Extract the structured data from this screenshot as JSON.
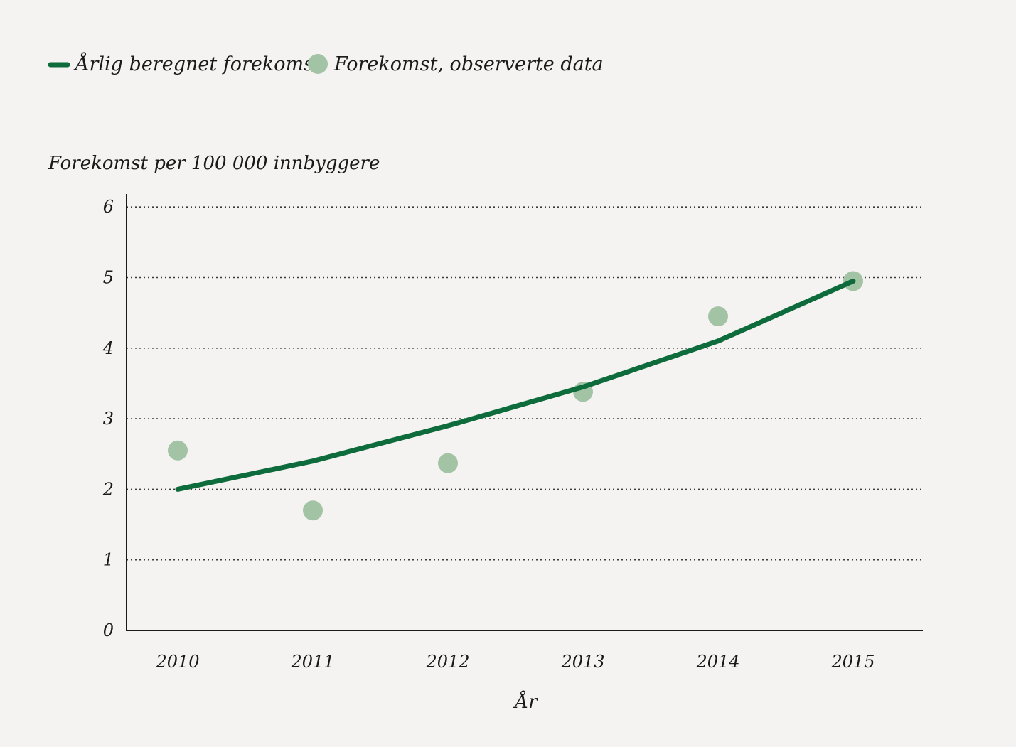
{
  "legend": {
    "line_label": "Årlig beregnet forekomst",
    "points_label": "Forekomst, observerte data"
  },
  "chart_data": {
    "type": "line",
    "ylabel": "Forekomst per 100 000 innbyggere",
    "xlabel": "År",
    "categories": [
      "2010",
      "2011",
      "2012",
      "2013",
      "2014",
      "2015"
    ],
    "yticks": [
      "0",
      "1",
      "2",
      "3",
      "4",
      "5",
      "6"
    ],
    "ylim": [
      0,
      6
    ],
    "grid": true,
    "legend_position": "top-left",
    "series": [
      {
        "name": "Årlig beregnet forekomst",
        "type": "line",
        "color": "#0e6b3b",
        "values": [
          2.0,
          2.4,
          2.9,
          3.45,
          4.1,
          4.95
        ]
      },
      {
        "name": "Forekomst, observerte data",
        "type": "scatter",
        "color": "#a3c3a5",
        "values": [
          2.55,
          1.7,
          2.37,
          3.38,
          4.45,
          4.95
        ]
      }
    ]
  }
}
